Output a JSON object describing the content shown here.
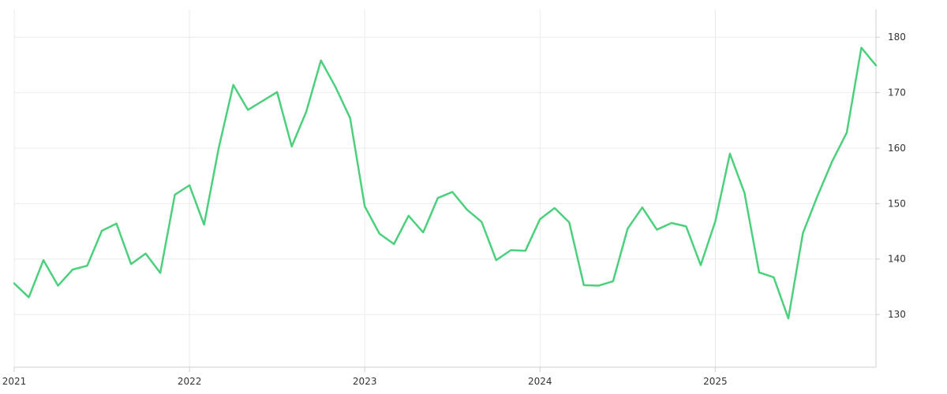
{
  "chart_data": {
    "type": "line",
    "title": "",
    "xlabel": "",
    "ylabel": "",
    "x_ticks": [
      "2021",
      "2022",
      "2023",
      "2024",
      "2025"
    ],
    "y_ticks": [
      130,
      140,
      150,
      160,
      170,
      180
    ],
    "xlim": [
      "2021-01",
      "2025-12"
    ],
    "ylim": [
      120.5,
      185
    ],
    "y_axis_side": "right",
    "grid": true,
    "legend": "none",
    "x": [
      "2021-01",
      "2021-02",
      "2021-03",
      "2021-04",
      "2021-05",
      "2021-06",
      "2021-07",
      "2021-08",
      "2021-09",
      "2021-10",
      "2021-11",
      "2021-12",
      "2022-01",
      "2022-02",
      "2022-03",
      "2022-04",
      "2022-05",
      "2022-06",
      "2022-07",
      "2022-08",
      "2022-09",
      "2022-10",
      "2022-11",
      "2022-12",
      "2023-01",
      "2023-02",
      "2023-03",
      "2023-04",
      "2023-05",
      "2023-06",
      "2023-07",
      "2023-08",
      "2023-09",
      "2023-10",
      "2023-11",
      "2023-12",
      "2024-01",
      "2024-02",
      "2024-03",
      "2024-04",
      "2024-05",
      "2024-06",
      "2024-07",
      "2024-08",
      "2024-09",
      "2024-10",
      "2024-11",
      "2024-12",
      "2025-01",
      "2025-02",
      "2025-03",
      "2025-04",
      "2025-05",
      "2025-06",
      "2025-07",
      "2025-08",
      "2025-09",
      "2025-10",
      "2025-11",
      "2025-12"
    ],
    "series": [
      {
        "color": "#4cd07d",
        "values": [
          135.6,
          133.1,
          139.8,
          135.2,
          138.1,
          138.8,
          145.1,
          146.4,
          139.1,
          141.0,
          137.5,
          151.6,
          153.3,
          146.2,
          160.0,
          171.4,
          166.9,
          168.5,
          170.1,
          160.3,
          166.6,
          175.8,
          171.0,
          165.4,
          149.5,
          144.6,
          142.7,
          147.8,
          144.8,
          151.0,
          152.1,
          148.9,
          146.7,
          139.8,
          141.6,
          141.5,
          147.2,
          149.2,
          146.6,
          135.3,
          135.2,
          136.0,
          145.5,
          149.3,
          145.3,
          146.5,
          145.9,
          138.9,
          146.8,
          159.0,
          151.9,
          137.6,
          136.7,
          129.3,
          144.7,
          151.4,
          157.6,
          162.8,
          178.1,
          174.9
        ]
      }
    ]
  }
}
